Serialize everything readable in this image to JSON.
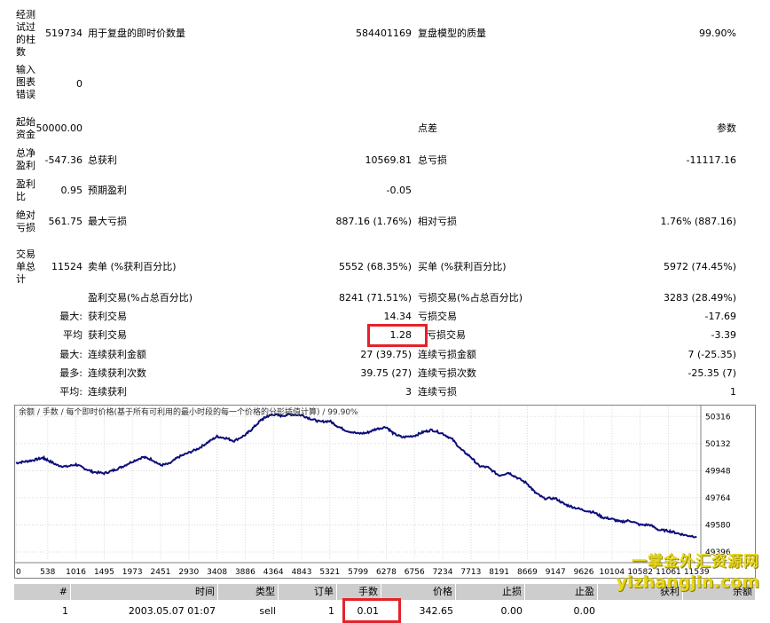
{
  "report": {
    "bars_tested": {
      "label": "经测试过的柱数",
      "value": "519734"
    },
    "ticks_modeled": {
      "label": "用于复盘的即时价数量",
      "value": "584401169"
    },
    "modeling_quality": {
      "label": "复盘模型的质量",
      "value": "99.90%"
    },
    "mismatched_errors": {
      "label": "输入图表错误",
      "value": "0"
    },
    "initial_deposit": {
      "label": "起始资金",
      "value": "50000.00"
    },
    "spread": {
      "label": "点差",
      "value": "参数"
    },
    "total_net_profit": {
      "label": "总净盈利",
      "value": "-547.36"
    },
    "gross_profit": {
      "label": "总获利",
      "value": "10569.81"
    },
    "gross_loss": {
      "label": "总亏损",
      "value": "-11117.16"
    },
    "profit_factor": {
      "label": "盈利比",
      "value": "0.95"
    },
    "expected_payoff": {
      "label": "预期盈利",
      "value": "-0.05"
    },
    "absolute_drawdown": {
      "label": "绝对亏损",
      "value": "561.75"
    },
    "maximal_drawdown": {
      "label": "最大亏损",
      "value": "887.16 (1.76%)"
    },
    "relative_drawdown": {
      "label": "相对亏损",
      "value": "1.76% (887.16)"
    },
    "total_trades": {
      "label": "交易单总计",
      "value": "11524"
    },
    "short_positions": {
      "label": "卖单 (%获利百分比)",
      "value": "5552 (68.35%)"
    },
    "long_positions": {
      "label": "买单 (%获利百分比)",
      "value": "5972 (74.45%)"
    },
    "profit_trades": {
      "label": "盈利交易(%占总百分比)",
      "value": "8241 (71.51%)"
    },
    "loss_trades": {
      "label": "亏损交易(%占总百分比)",
      "value": "3283 (28.49%)"
    },
    "largest": {
      "prefix": "最大:",
      "profit_label": "获利交易",
      "profit_value": "14.34",
      "loss_label": "亏损交易",
      "loss_value": "-17.69"
    },
    "average": {
      "prefix": "平均",
      "profit_label": "获利交易",
      "profit_value": "1.28",
      "loss_label": "亏损交易",
      "loss_value": "-3.39"
    },
    "max_consec": {
      "prefix": "最大:",
      "wins_label": "连续获利金额",
      "wins_value": "27 (39.75)",
      "losses_label": "连续亏损金额",
      "losses_value": "7 (-25.35)"
    },
    "maximal_consec": {
      "prefix": "最多:",
      "profit_label": "连续获利次数",
      "profit_value": "39.75 (27)",
      "loss_label": "连续亏损次数",
      "loss_value": "-25.35 (7)"
    },
    "avg_consec": {
      "prefix": "平均:",
      "wins_label": "连续获利",
      "wins_value": "3",
      "losses_label": "连续亏损",
      "losses_value": "1"
    }
  },
  "chart_data": {
    "type": "line",
    "legend": "余额 / 手数 / 每个即时价格(基于所有可利用的最小时段的每一个价格的分形插值计算) / 99.90%",
    "x_ticks": [
      "0",
      "538",
      "1016",
      "1495",
      "1973",
      "2451",
      "2930",
      "3408",
      "3886",
      "4364",
      "4843",
      "5321",
      "5799",
      "6278",
      "6756",
      "7234",
      "7713",
      "8191",
      "8669",
      "9147",
      "9626",
      "10104",
      "10582",
      "11061",
      "11539"
    ],
    "y_ticks": [
      "50316",
      "50132",
      "49948",
      "49764",
      "49580",
      "49396"
    ],
    "ylim": [
      49396,
      50384
    ],
    "xlim": [
      0,
      11580
    ],
    "series": [
      {
        "values_x": [
          0,
          150,
          300,
          450,
          538,
          700,
          850,
          1016,
          1150,
          1300,
          1495,
          1650,
          1800,
          1973,
          2150,
          2300,
          2451,
          2600,
          2750,
          2930,
          3100,
          3250,
          3408,
          3550,
          3700,
          3886,
          4000,
          4150,
          4250,
          4364,
          4500,
          4650,
          4843,
          5000,
          5150,
          5321,
          5450,
          5600,
          5799,
          5950,
          6100,
          6278,
          6400,
          6550,
          6756,
          6900,
          7050,
          7234,
          7400,
          7550,
          7713,
          7850,
          8000,
          8191,
          8350,
          8500,
          8669,
          8800,
          8950,
          9147,
          9300,
          9450,
          9626,
          9800,
          9950,
          10104,
          10250,
          10400,
          10582,
          10750,
          10900,
          11061,
          11200,
          11350,
          11539
        ],
        "values_y": [
          50000,
          50010,
          50020,
          50035,
          50020,
          49985,
          49975,
          49990,
          49965,
          49940,
          49930,
          49950,
          49975,
          50010,
          50040,
          50025,
          49985,
          49995,
          50040,
          50070,
          50100,
          50140,
          50180,
          50170,
          50150,
          50190,
          50230,
          50290,
          50315,
          50330,
          50320,
          50330,
          50325,
          50300,
          50280,
          50285,
          50250,
          50220,
          50200,
          50205,
          50230,
          50245,
          50200,
          50175,
          50185,
          50210,
          50225,
          50200,
          50160,
          50090,
          50040,
          49980,
          49970,
          49915,
          49935,
          49900,
          49860,
          49800,
          49760,
          49760,
          49720,
          49700,
          49680,
          49665,
          49630,
          49620,
          49600,
          49610,
          49580,
          49580,
          49545,
          49540,
          49525,
          49510,
          49500
        ]
      }
    ]
  },
  "trades_table": {
    "headers": [
      "#",
      "时间",
      "类型",
      "订单",
      "手数",
      "价格",
      "止损",
      "止盈",
      "获利",
      "余额"
    ],
    "rows": [
      [
        "1",
        "2003.05.07 01:07",
        "sell",
        "1",
        "0.01",
        "342.65",
        "0.00",
        "0.00",
        "",
        ""
      ]
    ]
  },
  "watermark": {
    "line1": "一掌金外汇资源网",
    "line2": "yizhangjin.com"
  },
  "colors": {
    "balance_line": "#0d0e7a",
    "highlight": "#e3232b",
    "header_bg": "#cdcdcd",
    "grid": "#d8d8d8"
  }
}
